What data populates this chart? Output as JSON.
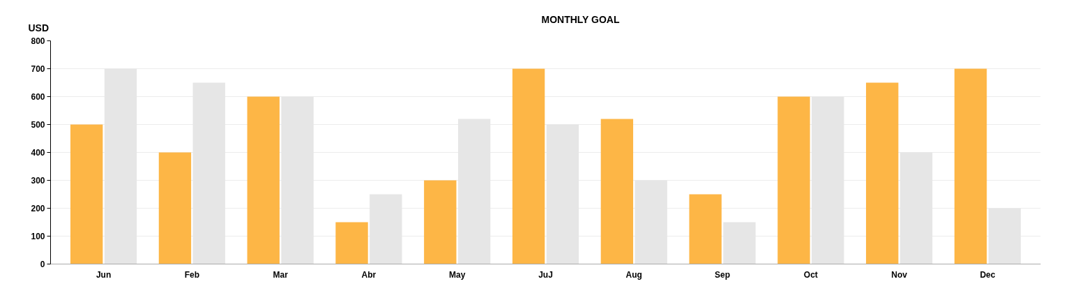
{
  "chart_data": {
    "type": "bar",
    "title": "MONTHLY GOAL",
    "ylabel": "USD",
    "categories": [
      "Jun",
      "Feb",
      "Mar",
      "Abr",
      "May",
      "JuJ",
      "Aug",
      "Sep",
      "Oct",
      "Nov",
      "Dec"
    ],
    "series": [
      {
        "color": "#fdb646",
        "values": [
          500,
          400,
          600,
          150,
          300,
          700,
          520,
          250,
          600,
          650,
          700
        ]
      },
      {
        "color": "#e6e6e6",
        "values": [
          700,
          650,
          600,
          250,
          520,
          500,
          300,
          150,
          600,
          400,
          200
        ]
      }
    ],
    "ylim": [
      0,
      800
    ],
    "yticks": [
      0,
      100,
      200,
      300,
      400,
      500,
      600,
      700,
      800
    ],
    "grid": "y"
  }
}
